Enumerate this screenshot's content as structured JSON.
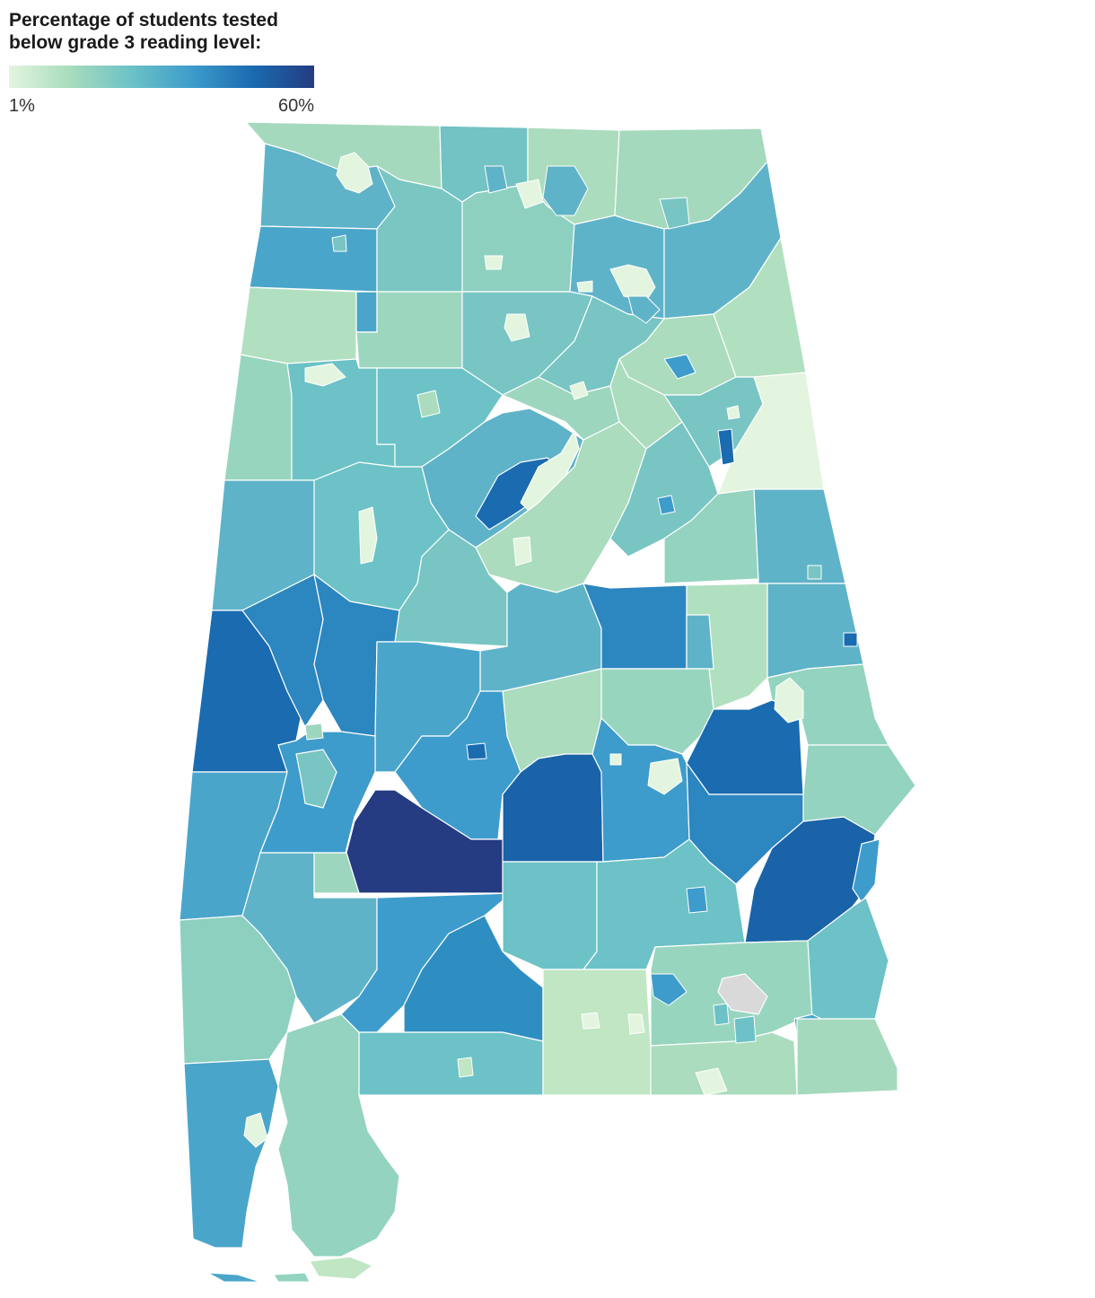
{
  "legend": {
    "title_line1": "Percentage of students tested",
    "title_line2": "below grade 3 reading level:",
    "min_label": "1%",
    "max_label": "60%",
    "gradient_colors": [
      "#e3f5df",
      "#a8dcbd",
      "#6cc2c6",
      "#3d9ccb",
      "#1a6bb0",
      "#253b82"
    ],
    "no_data_color": "#d9d9d9"
  },
  "map": {
    "region": "Alabama school districts",
    "color_scale_domain": [
      1,
      60
    ]
  }
}
